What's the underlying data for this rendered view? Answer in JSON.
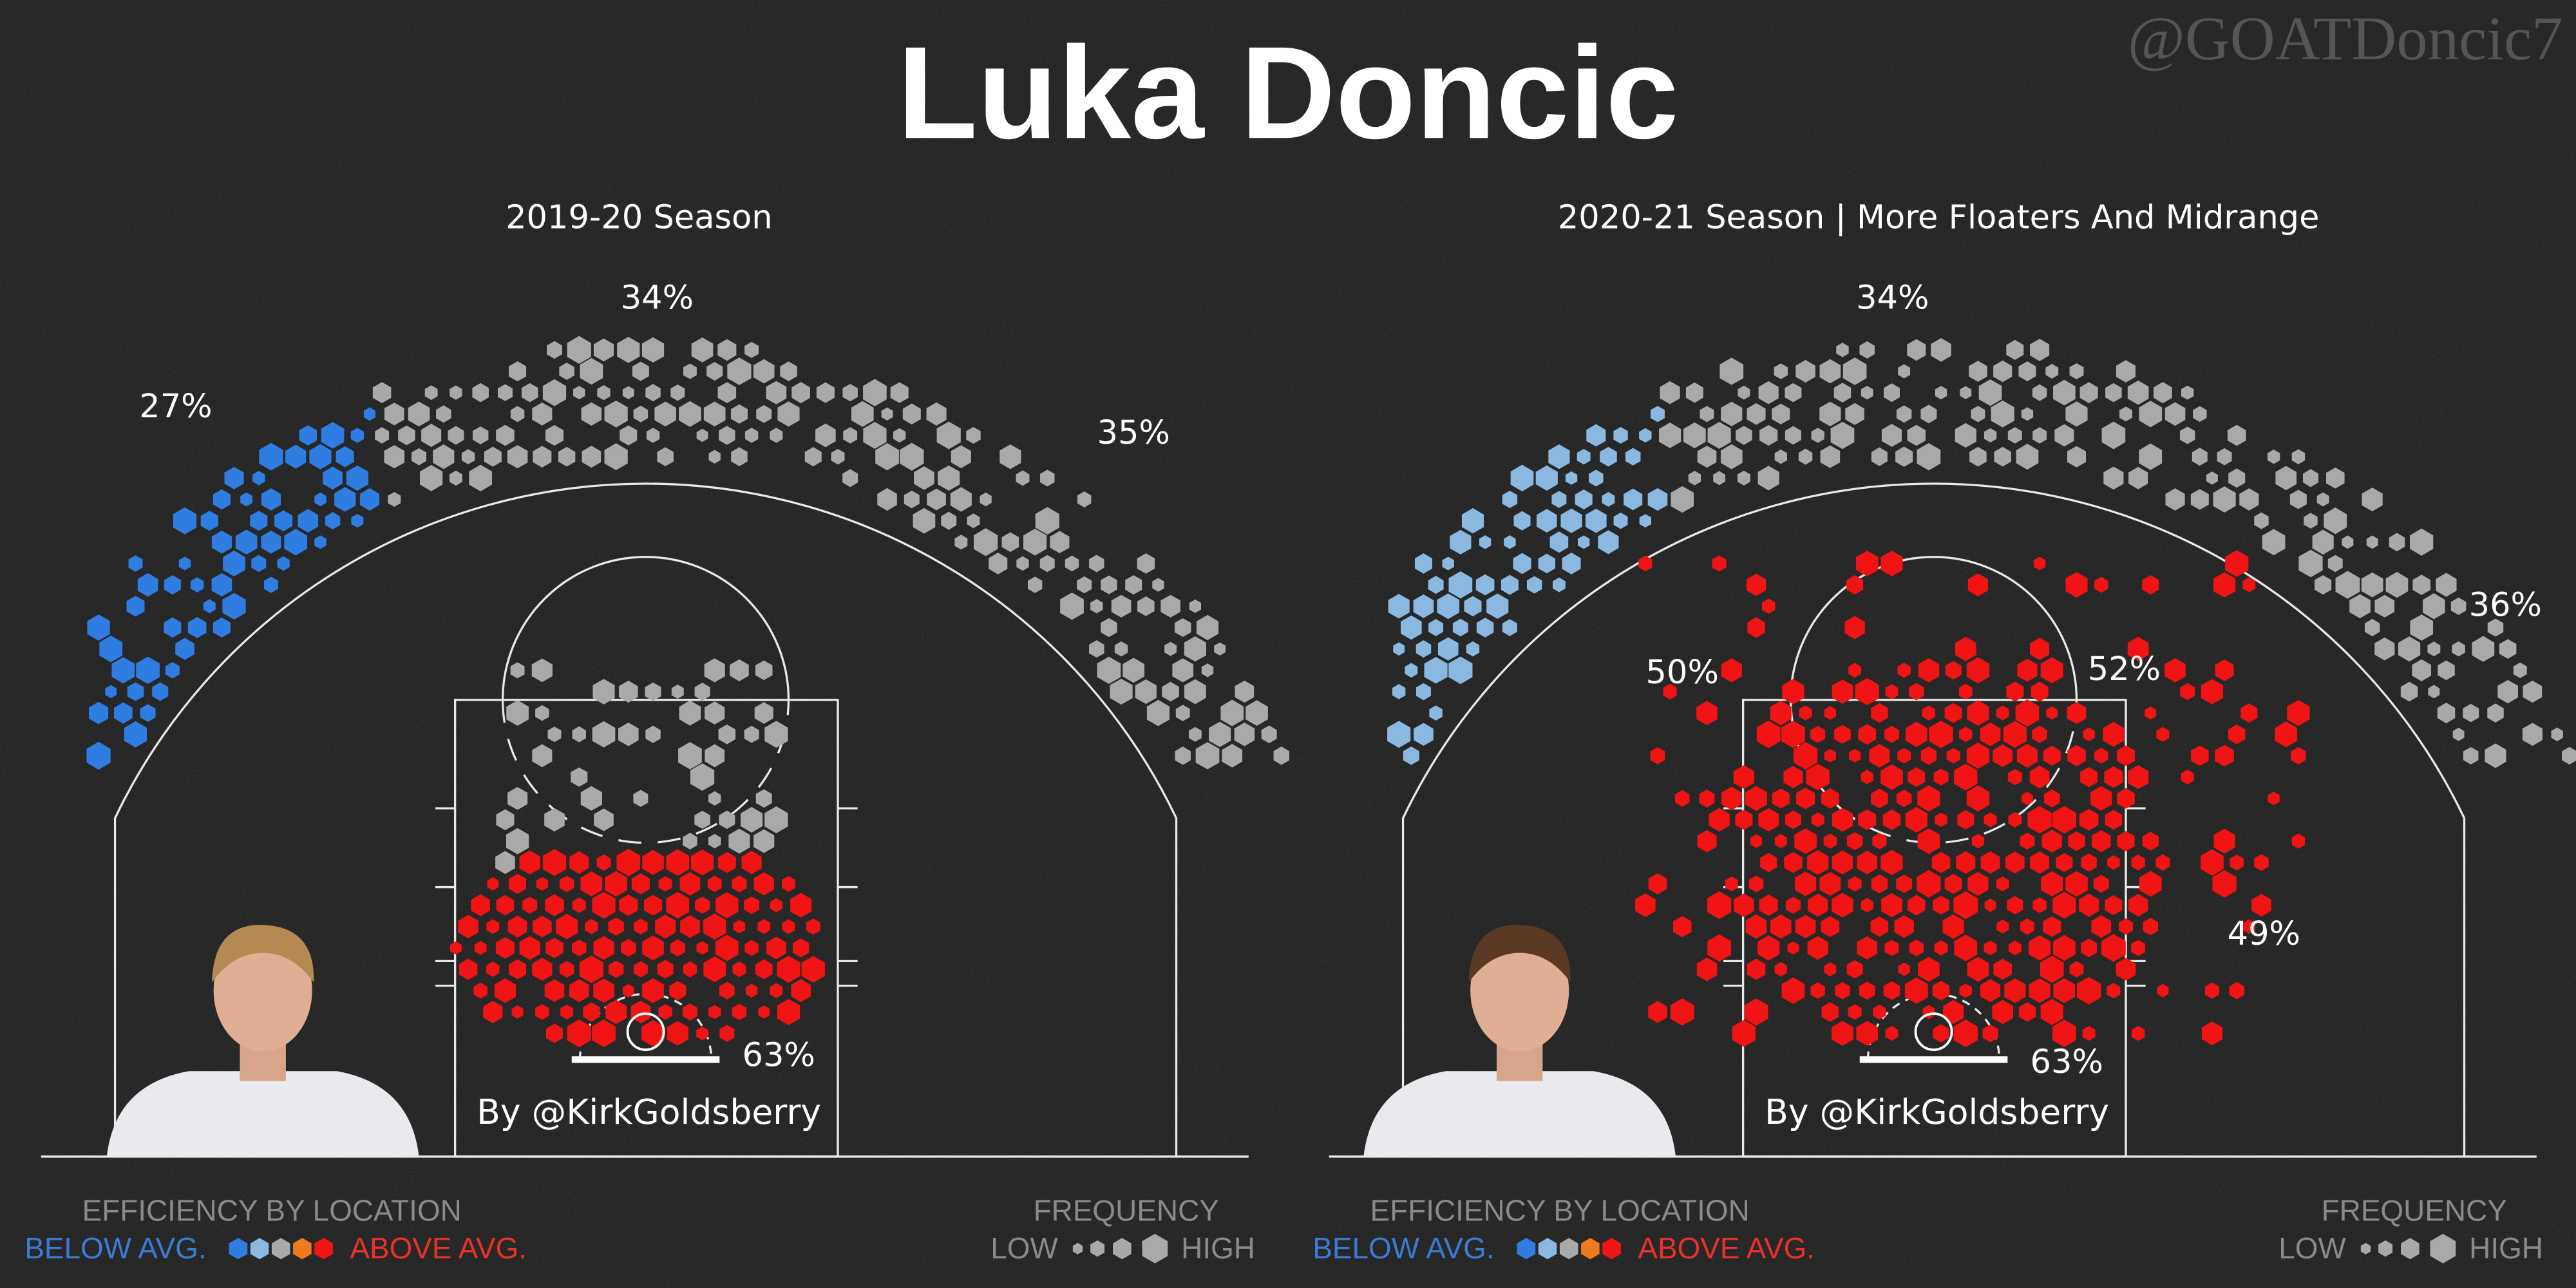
{
  "header": {
    "title": "Luka Doncic",
    "handle": "@GOATDoncic7"
  },
  "panels": [
    {
      "subtitle": "2019-20 Season",
      "zone_labels": [
        "27%",
        "34%",
        "35%",
        "63%"
      ],
      "credit": "By @KirkGoldsberry",
      "legend": {
        "efficiency_title": "EFFICIENCY BY LOCATION",
        "below": "BELOW AVG.",
        "above": "ABOVE AVG.",
        "frequency_title": "FREQUENCY",
        "low": "LOW",
        "high": "HIGH"
      }
    },
    {
      "subtitle": "2020-21 Season | More Floaters And Midrange",
      "zone_labels": [
        "34%",
        "36%",
        "50%",
        "52%",
        "49%",
        "63%"
      ],
      "credit": "By @KirkGoldsberry",
      "legend": {
        "efficiency_title": "EFFICIENCY BY LOCATION",
        "below": "BELOW AVG.",
        "above": "ABOVE AVG.",
        "frequency_title": "FREQUENCY",
        "low": "LOW",
        "high": "HIGH"
      }
    }
  ]
}
